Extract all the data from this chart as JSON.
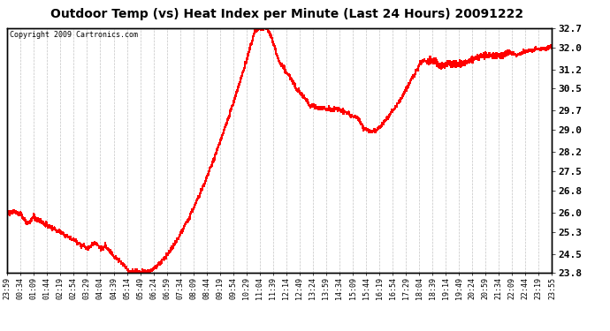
{
  "title": "Outdoor Temp (vs) Heat Index per Minute (Last 24 Hours) 20091222",
  "copyright": "Copyright 2009 Cartronics.com",
  "line_color": "#ff0000",
  "background_color": "#ffffff",
  "plot_bg_color": "#ffffff",
  "grid_color": "#aaaaaa",
  "ylim": [
    23.8,
    32.7
  ],
  "yticks": [
    23.8,
    24.5,
    25.3,
    26.0,
    26.8,
    27.5,
    28.2,
    29.0,
    29.7,
    30.5,
    31.2,
    32.0,
    32.7
  ],
  "xtick_labels": [
    "23:59",
    "00:34",
    "01:09",
    "01:44",
    "02:19",
    "02:54",
    "03:29",
    "04:04",
    "04:39",
    "05:14",
    "05:49",
    "06:24",
    "06:59",
    "07:34",
    "08:09",
    "08:44",
    "09:19",
    "09:54",
    "10:29",
    "11:04",
    "11:39",
    "12:14",
    "12:49",
    "13:24",
    "13:59",
    "14:34",
    "15:09",
    "15:44",
    "16:19",
    "16:54",
    "17:29",
    "18:04",
    "18:39",
    "19:14",
    "19:49",
    "20:24",
    "20:59",
    "21:34",
    "22:09",
    "22:44",
    "23:19",
    "23:55"
  ],
  "title_fontsize": 10,
  "copyright_fontsize": 6,
  "tick_fontsize": 6,
  "ytick_fontsize": 8
}
